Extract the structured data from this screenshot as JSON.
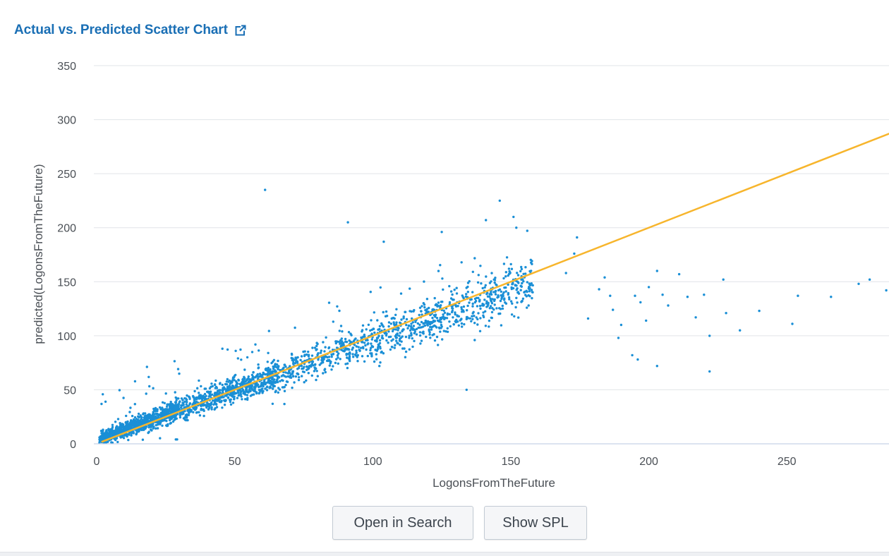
{
  "panel": {
    "title": "Actual vs. Predicted Scatter Chart",
    "external_link_icon": "external-link-icon"
  },
  "buttons": {
    "open_in_search": "Open in Search",
    "show_spl": "Show SPL"
  },
  "colors": {
    "points": "#1a8fd6",
    "fit_line": "#f7b52c",
    "title_link": "#1a6fb5",
    "grid": "#e1e4e8",
    "axis": "#c8d2e8"
  },
  "chart_data": {
    "type": "scatter",
    "xlabel": "LogonsFromTheFuture",
    "ylabel": "predicted(LogonsFromTheFuture)",
    "xlim": [
      0,
      287
    ],
    "ylim": [
      0,
      350
    ],
    "x_ticks": [
      0,
      50,
      100,
      150,
      200,
      250
    ],
    "y_ticks": [
      0,
      50,
      100,
      150,
      200,
      250,
      300,
      350
    ],
    "grid": "horizontal",
    "legend": "none",
    "fit_line": {
      "x": [
        2,
        287
      ],
      "y": [
        2,
        287
      ]
    },
    "outliers": [
      [
        61,
        235
      ],
      [
        91,
        205
      ],
      [
        146,
        225
      ],
      [
        151,
        210
      ],
      [
        141,
        207
      ],
      [
        104,
        187
      ],
      [
        125,
        196
      ],
      [
        152,
        200
      ],
      [
        174,
        191
      ],
      [
        173,
        176
      ],
      [
        184,
        154
      ],
      [
        186,
        137
      ],
      [
        187,
        124
      ],
      [
        190,
        110
      ],
      [
        195,
        137
      ],
      [
        197,
        131
      ],
      [
        200,
        145
      ],
      [
        203,
        160
      ],
      [
        205,
        138
      ],
      [
        207,
        128
      ],
      [
        211,
        157
      ],
      [
        214,
        136
      ],
      [
        217,
        117
      ],
      [
        220,
        138
      ],
      [
        222,
        100
      ],
      [
        227,
        152
      ],
      [
        228,
        121
      ],
      [
        240,
        123
      ],
      [
        252,
        111
      ],
      [
        254,
        137
      ],
      [
        266,
        136
      ],
      [
        276,
        148
      ],
      [
        280,
        152
      ],
      [
        286,
        142
      ],
      [
        194,
        82
      ],
      [
        196,
        78
      ],
      [
        203,
        72
      ],
      [
        222,
        67
      ],
      [
        134,
        50
      ],
      [
        189,
        98
      ],
      [
        178,
        116
      ],
      [
        199,
        114
      ],
      [
        233,
        105
      ],
      [
        170,
        158
      ],
      [
        182,
        143
      ]
    ]
  }
}
